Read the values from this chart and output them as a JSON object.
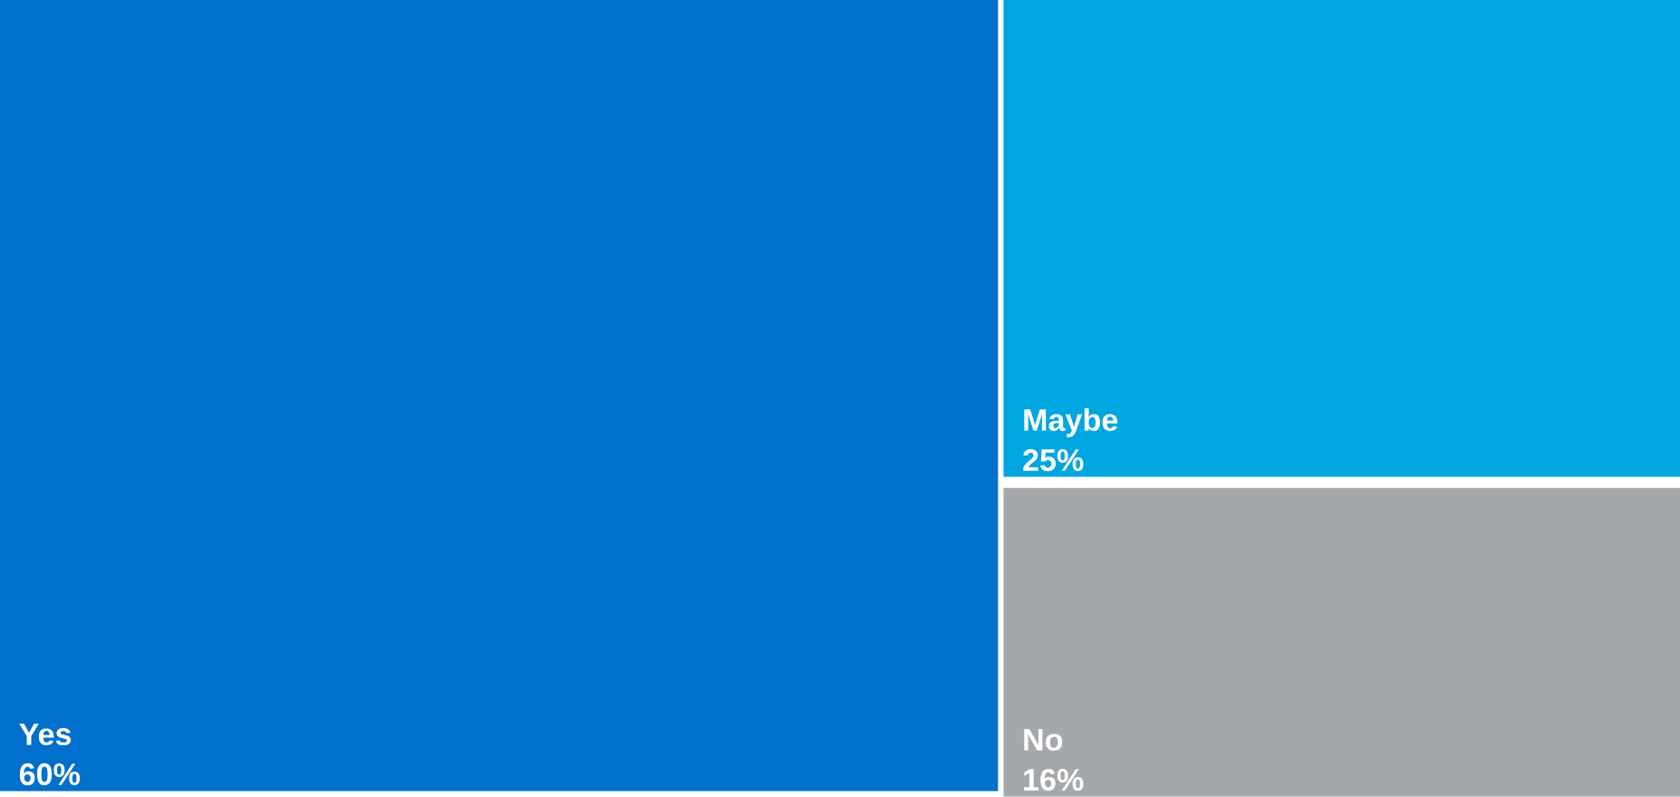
{
  "chart_data": {
    "type": "other",
    "categories": [
      "Yes",
      "Maybe",
      "No"
    ],
    "values": [
      60,
      25,
      16
    ],
    "value_labels": [
      "60%",
      "25%",
      "16%"
    ],
    "colors": [
      "#0070cc",
      "#00a6e0",
      "#a5a8ab"
    ]
  }
}
